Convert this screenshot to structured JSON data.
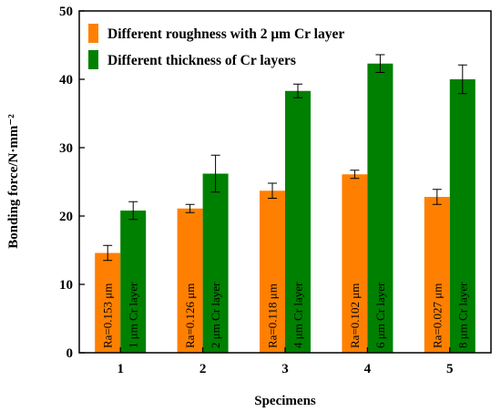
{
  "chart_data": {
    "type": "bar",
    "xlabel": "Specimens",
    "ylabel": "Bonding force/N·mm⁻²",
    "ylim": [
      0,
      50
    ],
    "yticks": [
      0,
      10,
      20,
      30,
      40,
      50
    ],
    "categories": [
      "1",
      "2",
      "3",
      "4",
      "5"
    ],
    "grid": false,
    "legend_position": "top-left",
    "series": [
      {
        "name": "Different roughness with 2 μm Cr layer",
        "color": "#ff8000",
        "values": [
          14.6,
          21.1,
          23.7,
          26.1,
          22.8
        ],
        "errors": [
          1.1,
          0.6,
          1.1,
          0.6,
          1.1
        ],
        "labels": [
          "Ra=0.153 μm",
          "Ra=0.126 μm",
          "Ra=0.118 μm",
          "Ra=0.102 μm",
          "Ra=0.027 μm"
        ]
      },
      {
        "name": "Different thickness of Cr layers",
        "color": "#008000",
        "values": [
          20.8,
          26.2,
          38.3,
          42.3,
          40.0
        ],
        "errors": [
          1.3,
          2.7,
          1.0,
          1.3,
          2.1
        ],
        "labels": [
          "1 μm Cr layer",
          "2 μm Cr layer",
          "4 μm Cr layer",
          "6 μm Cr layer",
          "8 μm Cr layer"
        ]
      }
    ]
  }
}
